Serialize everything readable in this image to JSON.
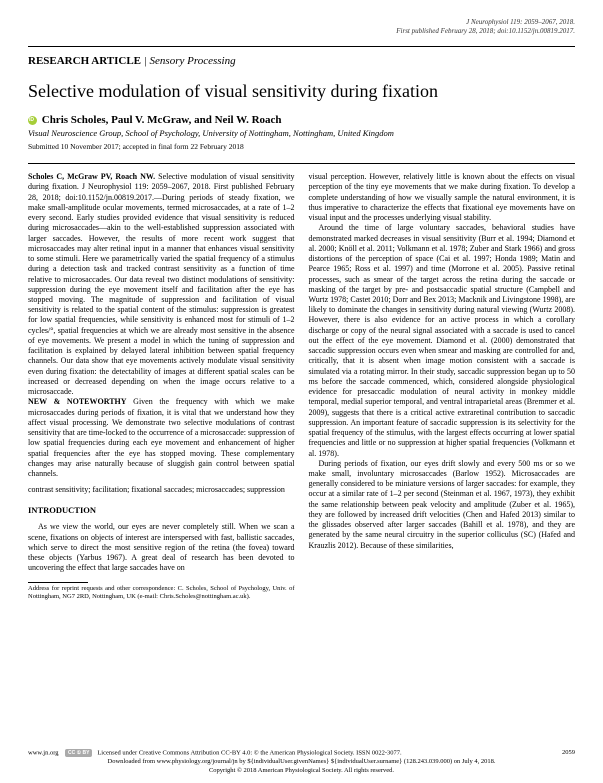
{
  "top_meta": {
    "line1": "J Neurophysiol 119: 2059–2067, 2018.",
    "line2": "First published February 28, 2018; doi:10.1152/jn.00819.2017."
  },
  "section_header": {
    "label": "RESEARCH ARTICLE",
    "topic": "Sensory Processing"
  },
  "title": "Selective modulation of visual sensitivity during fixation",
  "authors": "Chris Scholes, Paul V. McGraw, and Neil W. Roach",
  "affiliation": "Visual Neuroscience Group, School of Psychology, University of Nottingham, Nottingham, United Kingdom",
  "submission": "Submitted 10 November 2017; accepted in final form 22 February 2018",
  "abstract": {
    "citation_head": "Scholes C, McGraw PV, Roach NW.",
    "citation_body": "Selective modulation of visual sensitivity during fixation. J Neurophysiol 119: 2059–2067, 2018. First published February 28, 2018; doi:10.1152/jn.00819.2017.—During periods of steady fixation, we make small-amplitude ocular movements, termed microsaccades, at a rate of 1–2 every second. Early studies provided evidence that visual sensitivity is reduced during microsaccades—akin to the well-established suppression associated with larger saccades. However, the results of more recent work suggest that microsaccades may alter retinal input in a manner that enhances visual sensitivity to some stimuli. Here we parametrically varied the spatial frequency of a stimulus during a detection task and tracked contrast sensitivity as a function of time relative to microsaccades. Our data reveal two distinct modulations of sensitivity: suppression during the eye movement itself and facilitation after the eye has stopped moving. The magnitude of suppression and facilitation of visual sensitivity is related to the spatial content of the stimulus: suppression is greatest for low spatial frequencies, while sensitivity is enhanced most for stimuli of 1–2 cycles/°, spatial frequencies at which we are already most sensitive in the absence of eye movements. We present a model in which the tuning of suppression and facilitation is explained by delayed lateral inhibition between spatial frequency channels. Our data show that eye movements actively modulate visual sensitivity even during fixation: the detectability of images at different spatial scales can be increased or decreased depending on when the image occurs relative to a microsaccade."
  },
  "noteworthy": {
    "head": "NEW & NOTEWORTHY",
    "body": "Given the frequency with which we make microsaccades during periods of fixation, it is vital that we understand how they affect visual processing. We demonstrate two selective modulations of contrast sensitivity that are time-locked to the occurrence of a microsaccade: suppression of low spatial frequencies during each eye movement and enhancement of higher spatial frequencies after the eye has stopped moving. These complementary changes may arise naturally because of sluggish gain control between spatial channels."
  },
  "keywords": "contrast sensitivity; facilitation; fixational saccades; microsaccades; suppression",
  "intro_head": "INTRODUCTION",
  "intro_p1": "As we view the world, our eyes are never completely still. When we scan a scene, fixations on objects of interest are interspersed with fast, ballistic saccades, which serve to direct the most sensitive region of the retina (the fovea) toward these objects (Yarbus 1967). A great deal of research has been devoted to uncovering the effect that large saccades have on",
  "correspondence": "Address for reprint requests and other correspondence: C. Scholes, School of Psychology, Univ. of Nottingham, NG7 2RD, Nottingham, UK (e-mail: Chris.Scholes@nottingham.ac.uk).",
  "col2_p1": "visual perception. However, relatively little is known about the effects on visual perception of the tiny eye movements that we make during fixation. To develop a complete understanding of how we visually sample the natural environment, it is thus imperative to characterize the effects that fixational eye movements have on visual input and the processes underlying visual stability.",
  "col2_p2": "Around the time of large voluntary saccades, behavioral studies have demonstrated marked decreases in visual sensitivity (Burr et al. 1994; Diamond et al. 2000; Knöll et al. 2011; Volkmann et al. 1978; Zuber and Stark 1966) and gross distortions of the perception of space (Cai et al. 1997; Honda 1989; Matin and Pearce 1965; Ross et al. 1997) and time (Morrone et al. 2005). Passive retinal processes, such as smear of the target across the retina during the saccade or masking of the target by pre- and postsaccadic spatial structure (Campbell and Wurtz 1978; Castet 2010; Dorr and Bex 2013; Macknik and Livingstone 1998), are likely to dominate the changes in sensitivity during natural viewing (Wurtz 2008). However, there is also evidence for an active process in which a corollary discharge or copy of the neural signal associated with a saccade is used to cancel out the effect of the eye movement. Diamond et al. (2000) demonstrated that saccadic suppression occurs even when smear and masking are controlled for and, critically, that it is absent when image motion consistent with a saccade is simulated via a rotating mirror. In their study, saccadic suppression began up to 50 ms before the saccade commenced, which, considered alongside physiological evidence for presaccadic modulation of neural activity in monkey middle temporal, medial superior temporal, and ventral intraparietal areas (Bremmer et al. 2009), suggests that there is a critical active extraretinal contribution to saccadic suppression. An important feature of saccadic suppression is its selectivity for the spatial frequency of the stimulus, with the largest effects occurring at lower spatial frequencies and little or no suppression at higher spatial frequencies (Volkmann et al. 1978).",
  "col2_p3": "During periods of fixation, our eyes drift slowly and every 500 ms or so we make small, involuntary microsaccades (Barlow 1952). Microsaccades are generally considered to be miniature versions of larger saccades: for example, they occur at a similar rate of 1–2 per second (Steinman et al. 1967, 1973), they exhibit the same relationship between peak velocity and amplitude (Zuber et al. 1965), they are followed by increased drift velocities (Chen and Hafed 2013) similar to the glissades observed after larger saccades (Bahill et al. 1978), and they are generated by the same neural circuitry in the superior colliculus (SC) (Hafed and Krauzlis 2012). Because of these similarities,",
  "footer": {
    "site": "www.jn.org",
    "license": "Licensed under Creative Commons Attribution CC-BY 4.0: © the American Physiological Society. ISSN 0022-3077.",
    "page_num": "2059",
    "downloaded": "Downloaded from www.physiology.org/journal/jn by ${individualUser.givenNames} ${individualUser.surname} (128.243.039.000) on July 4, 2018.",
    "copyright": "Copyright © 2018 American Physiological Society. All rights reserved."
  }
}
